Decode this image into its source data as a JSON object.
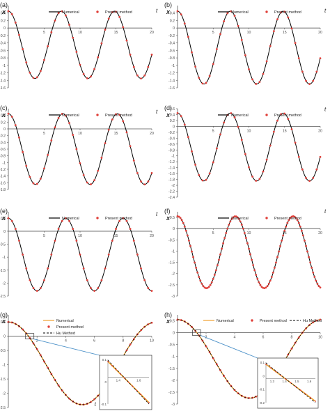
{
  "charts": [
    {
      "type": "line",
      "panel_label": "(a)",
      "ylabel": "x",
      "xlabel": "t",
      "legend": [
        "Numerical",
        "Present method"
      ],
      "x_ticks": [
        "5",
        "10",
        "15",
        "20"
      ],
      "y_ticks": [
        "0.4",
        "0.2",
        "0",
        "-0.2",
        "-0.4",
        "-0.6",
        "-0.8",
        "-1",
        "-1.2",
        "-1.4",
        "-1.6"
      ],
      "xlim": [
        0,
        20
      ],
      "ylim": [
        -1.6,
        0.6
      ],
      "chart_data": {
        "type": "line",
        "x_range": [
          0,
          20
        ],
        "series": [
          {
            "name": "Numerical",
            "kind": "line",
            "amplitude": 0.9,
            "center": -0.45,
            "period": 7.4,
            "start": 0.45
          },
          {
            "name": "Present method",
            "kind": "scatter",
            "amplitude": 0.9,
            "center": -0.45,
            "period": 7.4,
            "start": 0.45,
            "step": 0.5
          }
        ]
      }
    },
    {
      "type": "line",
      "panel_label": "(b)",
      "ylabel": "x",
      "xlabel": "t",
      "legend": [
        "Numerical",
        "Present method"
      ],
      "x_ticks": [
        "5",
        "10",
        "15",
        "20"
      ],
      "y_ticks": [
        "0.4",
        "0.2",
        "0",
        "-0.2",
        "-0.4",
        "-0.6",
        "-0.8",
        "-1",
        "-1.2",
        "-1.4",
        "-1.6"
      ],
      "xlim": [
        0,
        20
      ],
      "ylim": [
        -1.6,
        0.6
      ],
      "chart_data": {
        "type": "line",
        "x_range": [
          0,
          20
        ],
        "series": [
          {
            "name": "Numerical",
            "kind": "line",
            "amplitude": 0.975,
            "center": -0.525,
            "period": 7.4,
            "start": 0.45
          },
          {
            "name": "Present method",
            "kind": "scatter",
            "amplitude": 0.975,
            "center": -0.525,
            "period": 7.4,
            "start": 0.45,
            "step": 0.5
          }
        ]
      }
    },
    {
      "type": "line",
      "panel_label": "(c)",
      "ylabel": "x",
      "xlabel": "t",
      "legend": [
        "Numerical",
        "Present method"
      ],
      "x_ticks": [
        "5",
        "10",
        "15",
        "20"
      ],
      "y_ticks": [
        "0.4",
        "0.2",
        "0",
        "-0.2",
        "-0.4",
        "-0.6",
        "-0.8",
        "-1",
        "-1.2",
        "-1.4",
        "-1.6",
        "-1.8"
      ],
      "xlim": [
        0,
        20
      ],
      "ylim": [
        -1.8,
        0.6
      ],
      "chart_data": {
        "type": "line",
        "x_range": [
          0,
          20
        ],
        "series": [
          {
            "name": "Numerical",
            "kind": "line",
            "amplitude": 1.05,
            "center": -0.6,
            "period": 7.6,
            "start": 0.45
          },
          {
            "name": "Present method",
            "kind": "scatter",
            "amplitude": 1.05,
            "center": -0.6,
            "period": 7.6,
            "start": 0.45,
            "step": 0.5
          }
        ]
      }
    },
    {
      "type": "line",
      "panel_label": "(d)",
      "ylabel": "x",
      "xlabel": "t",
      "legend": [
        "Numerical",
        "Present method"
      ],
      "x_ticks": [
        "5",
        "10",
        "15",
        "20"
      ],
      "y_ticks": [
        "0.6",
        "0.4",
        "0.2",
        "0",
        "-0.2",
        "-0.4",
        "-0.6",
        "-0.8",
        "-1",
        "-1.2",
        "-1.4",
        "-1.6",
        "-1.8",
        "-2",
        "-2.2",
        "-2.4"
      ],
      "xlim": [
        0,
        20
      ],
      "ylim": [
        -2.4,
        0.6
      ],
      "chart_data": {
        "type": "line",
        "x_range": [
          0,
          20
        ],
        "series": [
          {
            "name": "Numerical",
            "kind": "line",
            "amplitude": 1.15,
            "center": -0.7,
            "period": 7.4,
            "start": 0.45
          },
          {
            "name": "Present method",
            "kind": "scatter",
            "amplitude": 1.15,
            "center": -0.7,
            "period": 7.4,
            "start": 0.45,
            "step": 0.5
          }
        ]
      }
    },
    {
      "type": "line",
      "panel_label": "(e)",
      "ylabel": "x",
      "xlabel": "t",
      "legend": [
        "Numerical",
        "Present method"
      ],
      "x_ticks": [
        "5",
        "10",
        "15",
        "20"
      ],
      "y_ticks": [
        "0.5",
        "0",
        "-0.5",
        "-1",
        "-1.5",
        "-2",
        "-2.5"
      ],
      "xlim": [
        0,
        20
      ],
      "ylim": [
        -2.5,
        0.75
      ],
      "chart_data": {
        "type": "line",
        "x_range": [
          0,
          20
        ],
        "series": [
          {
            "name": "Numerical",
            "kind": "line",
            "amplitude": 1.4,
            "center": -0.9,
            "period": 8.0,
            "start": 0.5
          },
          {
            "name": "Present method",
            "kind": "scatter",
            "amplitude": 1.4,
            "center": -0.9,
            "period": 8.0,
            "start": 0.5,
            "step": 0.5
          }
        ]
      }
    },
    {
      "type": "line",
      "panel_label": "(f)",
      "ylabel": "x",
      "xlabel": "t",
      "legend": [
        "Numerical",
        "Present method"
      ],
      "x_ticks": [
        "5",
        "10",
        "15",
        "20"
      ],
      "y_ticks": [
        "0.5",
        "0",
        "-0.5",
        "-1",
        "-1.5",
        "-2",
        "-2.5",
        "-3"
      ],
      "xlim": [
        0,
        20
      ],
      "ylim": [
        -3,
        0.75
      ],
      "chart_data": {
        "type": "line",
        "x_range": [
          0,
          20
        ],
        "series": [
          {
            "name": "Numerical",
            "kind": "line",
            "amplitude": 1.6,
            "center": -1.05,
            "period": 8.1,
            "start": 0.55
          },
          {
            "name": "Present method",
            "kind": "scatter",
            "amplitude": 1.6,
            "center": -1.05,
            "period": 8.1,
            "start": 0.55,
            "step": 0.2
          }
        ]
      }
    },
    {
      "type": "line",
      "panel_label": "(g)",
      "ylabel": "x",
      "xlabel": "t",
      "legend": [
        "Numerical",
        "Present method",
        "Hu Method"
      ],
      "x_ticks": [
        "2",
        "4",
        "6",
        "8",
        "10"
      ],
      "y_ticks": [
        "0.5",
        "0",
        "-0.5",
        "-1",
        "-1.5",
        "-2",
        "-2.5"
      ],
      "xlim": [
        0,
        10
      ],
      "ylim": [
        -2.5,
        0.75
      ],
      "inset": {
        "x_ticks": [
          "1.4",
          "1.6"
        ],
        "y_ticks": [
          "0.1",
          "0",
          "-0.1"
        ]
      },
      "chart_data": {
        "type": "line",
        "x_range": [
          0,
          10
        ],
        "series": [
          {
            "name": "Numerical",
            "kind": "line",
            "amplitude": 1.45,
            "center": -0.95,
            "period": 10.3,
            "start": 0.5
          },
          {
            "name": "Present method",
            "kind": "scatter",
            "amplitude": 1.45,
            "center": -0.95,
            "period": 10.3,
            "start": 0.5,
            "step": 0.25
          },
          {
            "name": "Hu Method",
            "kind": "dashed",
            "amplitude": 1.45,
            "center": -0.95,
            "period": 10.3,
            "start": 0.5
          }
        ]
      }
    },
    {
      "type": "line",
      "panel_label": "(h)",
      "ylabel": "x",
      "xlabel": "t",
      "legend": [
        "Numerical",
        "Present method",
        "Hu Method"
      ],
      "x_ticks": [
        "2",
        "4",
        "6",
        "8",
        "10"
      ],
      "y_ticks": [
        "0.5",
        "0",
        "-0.5",
        "-1",
        "-1.5",
        "-2",
        "-2.5",
        "-3"
      ],
      "xlim": [
        0,
        10
      ],
      "ylim": [
        -3,
        0.75
      ],
      "inset": {
        "x_ticks": [
          "1.3",
          "1.4",
          "1.5",
          "1.6"
        ],
        "y_ticks": [
          "0.1",
          "0",
          "-0.1",
          "-0.2"
        ]
      },
      "chart_data": {
        "type": "line",
        "x_range": [
          0,
          10
        ],
        "series": [
          {
            "name": "Numerical",
            "kind": "line",
            "amplitude": 1.65,
            "center": -1.1,
            "period": 10.1,
            "start": 0.55
          },
          {
            "name": "Present method",
            "kind": "scatter",
            "amplitude": 1.65,
            "center": -1.1,
            "period": 10.1,
            "start": 0.55,
            "step": 0.25
          },
          {
            "name": "Hu Method",
            "kind": "dashed",
            "amplitude": 1.65,
            "center": -1.1,
            "period": 10.1,
            "start": 0.55
          }
        ]
      }
    }
  ],
  "colors": {
    "line": "#000000",
    "marker": "#e0403a",
    "orange": "#f0a030",
    "connector": "#4a90c8"
  }
}
